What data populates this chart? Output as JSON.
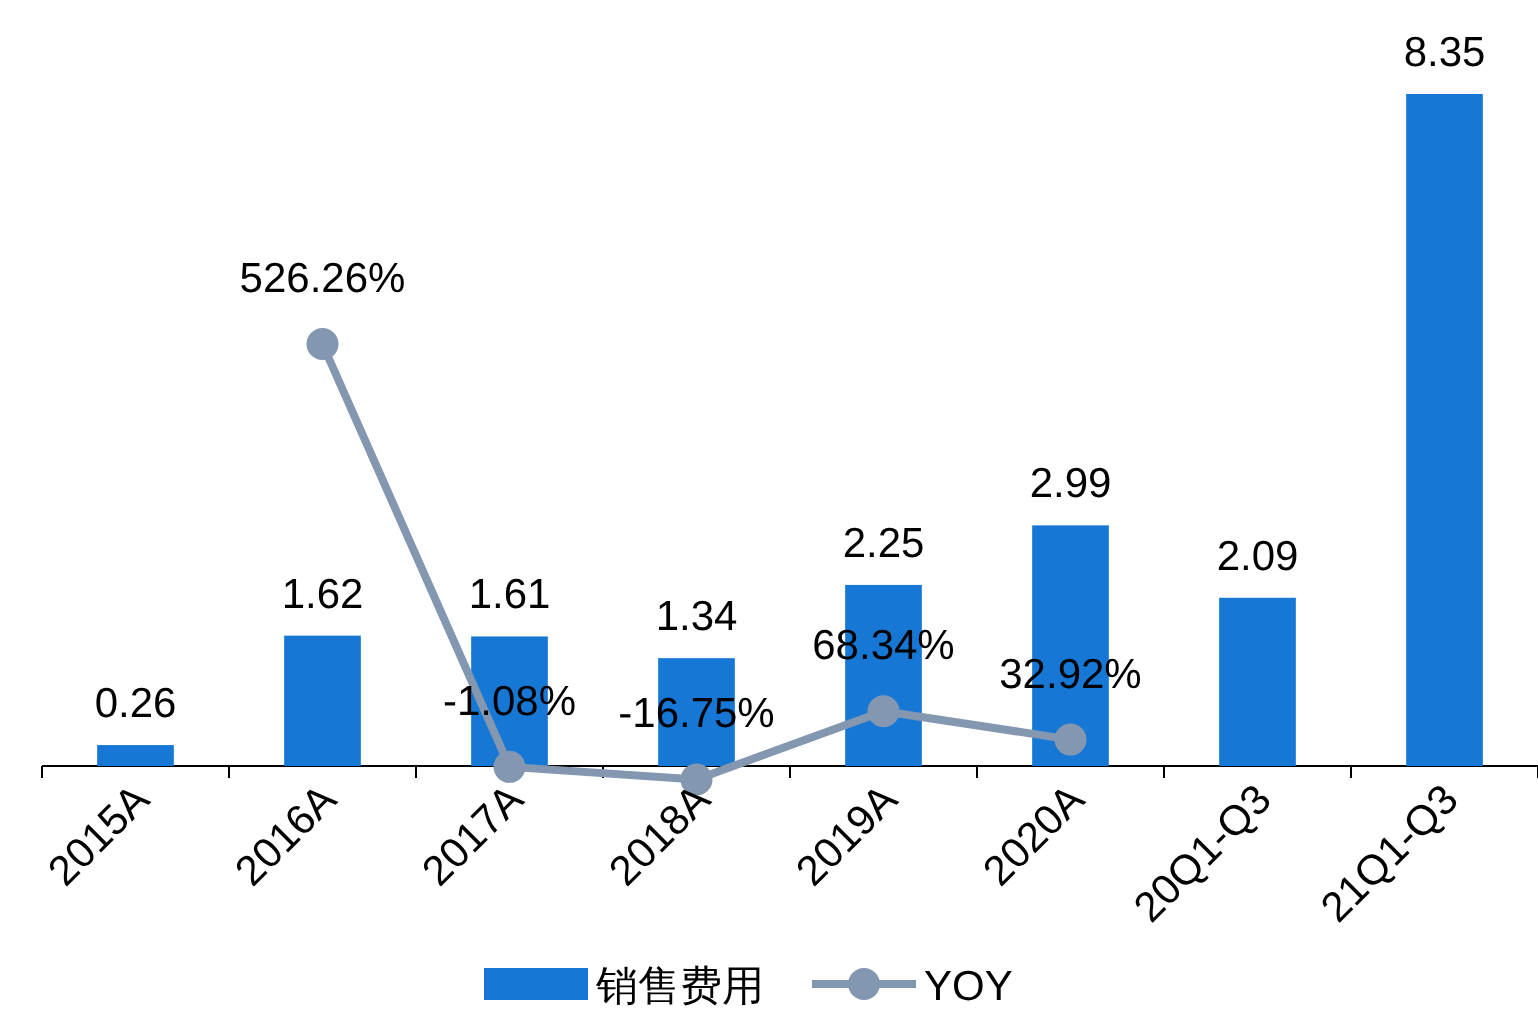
{
  "chart_data": {
    "type": "bar",
    "categories": [
      "2015A",
      "2016A",
      "2017A",
      "2018A",
      "2019A",
      "2020A",
      "20Q1-Q3",
      "21Q1-Q3"
    ],
    "series": [
      {
        "name": "销售费用",
        "color": "#1777d5",
        "values": [
          0.26,
          1.62,
          1.61,
          1.34,
          2.25,
          2.99,
          2.09,
          8.35
        ],
        "value_labels": [
          "0.26",
          "1.62",
          "1.61",
          "1.34",
          "2.25",
          "2.99",
          "2.09",
          "8.35"
        ]
      },
      {
        "name": "YOY",
        "type": "line",
        "axis": "y2",
        "color": "#8497b0",
        "marker": "circle",
        "values": [
          null,
          526.26,
          -1.08,
          -16.75,
          68.34,
          32.92,
          null,
          null
        ],
        "value_labels": [
          null,
          "526.26%",
          "-1.08%",
          "-16.75%",
          "68.34%",
          "32.92%",
          null,
          null
        ]
      }
    ],
    "tick_labels": "x",
    "legend": "bottom"
  }
}
